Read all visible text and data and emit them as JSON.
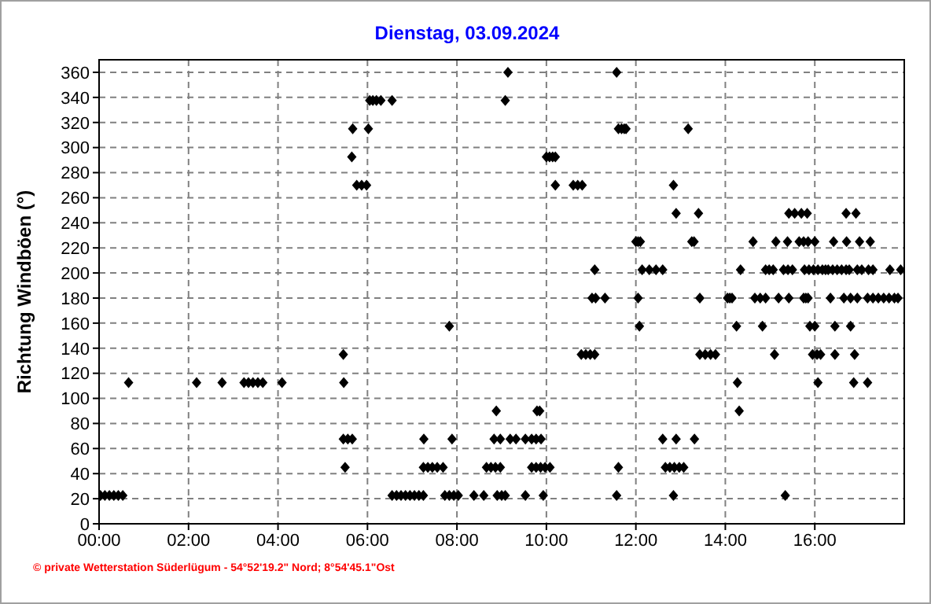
{
  "chart_data": {
    "type": "scatter",
    "title": "Dienstag, 03.09.2024",
    "ylabel": "Richtung Windböen  (°)",
    "annotations": [
      "© private Wetterstation Süderlügum - 54°52'19.2\" Nord; 8°54'45.1\"Ost"
    ],
    "x": [
      0.03,
      0.13,
      0.23,
      0.33,
      0.43,
      0.53,
      6.55,
      6.65,
      6.75,
      6.85,
      6.95,
      7.05,
      7.15,
      7.25,
      7.73,
      7.83,
      7.93,
      8.03,
      8.38,
      8.6,
      8.9,
      9.0,
      9.08,
      9.53,
      9.93,
      11.57,
      12.84,
      15.34,
      5.5,
      7.25,
      7.35,
      7.45,
      7.56,
      7.69,
      8.66,
      8.76,
      8.86,
      8.97,
      9.67,
      9.77,
      9.87,
      9.97,
      10.08,
      11.61,
      12.66,
      12.76,
      12.86,
      12.97,
      13.07,
      5.46,
      5.56,
      5.66,
      7.26,
      7.89,
      8.83,
      8.97,
      9.19,
      9.32,
      9.53,
      9.67,
      9.77,
      9.88,
      12.6,
      12.9,
      13.31,
      8.88,
      9.79,
      9.85,
      14.31,
      0.66,
      2.18,
      2.75,
      3.24,
      3.34,
      3.44,
      3.55,
      3.66,
      4.09,
      5.47,
      14.27,
      16.07,
      16.87,
      17.18,
      5.46,
      10.78,
      10.88,
      10.98,
      11.08,
      13.43,
      13.55,
      13.67,
      13.78,
      15.1,
      15.95,
      16.05,
      16.13,
      16.45,
      16.89,
      7.83,
      12.08,
      14.25,
      14.83,
      15.89,
      16.0,
      16.45,
      16.8,
      11.02,
      11.1,
      11.31,
      12.05,
      13.43,
      14.05,
      14.1,
      14.15,
      14.66,
      14.78,
      14.9,
      15.19,
      15.42,
      15.75,
      15.8,
      15.85,
      16.35,
      16.65,
      16.8,
      16.95,
      17.18,
      17.3,
      17.42,
      17.54,
      17.66,
      17.78,
      17.86,
      11.08,
      12.14,
      12.3,
      12.45,
      12.6,
      14.34,
      14.9,
      14.98,
      15.07,
      15.3,
      15.4,
      15.5,
      15.77,
      15.87,
      15.97,
      16.07,
      16.17,
      16.24,
      16.3,
      16.4,
      16.5,
      16.6,
      16.7,
      16.77,
      16.95,
      17.05,
      17.2,
      17.3,
      17.68,
      17.92,
      12.0,
      12.05,
      12.1,
      13.25,
      13.3,
      14.62,
      15.13,
      15.39,
      15.65,
      15.75,
      15.85,
      16.0,
      16.42,
      16.71,
      17.0,
      17.24,
      12.9,
      13.4,
      15.42,
      15.55,
      15.7,
      15.83,
      16.7,
      16.92,
      5.76,
      5.87,
      5.98,
      10.2,
      10.6,
      10.7,
      10.8,
      12.84,
      5.65,
      10.0,
      10.07,
      10.14,
      10.2,
      5.67,
      6.02,
      11.61,
      11.68,
      11.74,
      11.78,
      13.17,
      6.05,
      6.12,
      6.2,
      6.3,
      6.55,
      9.08,
      9.14,
      11.57
    ],
    "values": [
      22.5,
      22.5,
      22.5,
      22.5,
      22.5,
      22.5,
      22.5,
      22.5,
      22.5,
      22.5,
      22.5,
      22.5,
      22.5,
      22.5,
      22.5,
      22.5,
      22.5,
      22.5,
      22.5,
      22.5,
      22.5,
      22.5,
      22.5,
      22.5,
      22.5,
      22.5,
      22.5,
      22.5,
      45,
      45,
      45,
      45,
      45,
      45,
      45,
      45,
      45,
      45,
      45,
      45,
      45,
      45,
      45,
      45,
      45,
      45,
      45,
      45,
      45,
      67.5,
      67.5,
      67.5,
      67.5,
      67.5,
      67.5,
      67.5,
      67.5,
      67.5,
      67.5,
      67.5,
      67.5,
      67.5,
      67.5,
      67.5,
      67.5,
      90,
      90,
      90,
      90,
      112.5,
      112.5,
      112.5,
      112.5,
      112.5,
      112.5,
      112.5,
      112.5,
      112.5,
      112.5,
      112.5,
      112.5,
      112.5,
      112.5,
      135,
      135,
      135,
      135,
      135,
      135,
      135,
      135,
      135,
      135,
      135,
      135,
      135,
      135,
      135,
      157.5,
      157.5,
      157.5,
      157.5,
      157.5,
      157.5,
      157.5,
      157.5,
      180,
      180,
      180,
      180,
      180,
      180,
      180,
      180,
      180,
      180,
      180,
      180,
      180,
      180,
      180,
      180,
      180,
      180,
      180,
      180,
      180,
      180,
      180,
      180,
      180,
      180,
      180,
      202.5,
      202.5,
      202.5,
      202.5,
      202.5,
      202.5,
      202.5,
      202.5,
      202.5,
      202.5,
      202.5,
      202.5,
      202.5,
      202.5,
      202.5,
      202.5,
      202.5,
      202.5,
      202.5,
      202.5,
      202.5,
      202.5,
      202.5,
      202.5,
      202.5,
      202.5,
      202.5,
      202.5,
      202.5,
      202.5,
      225,
      225,
      225,
      225,
      225,
      225,
      225,
      225,
      225,
      225,
      225,
      225,
      225,
      225,
      225,
      225,
      247.5,
      247.5,
      247.5,
      247.5,
      247.5,
      247.5,
      247.5,
      247.5,
      270,
      270,
      270,
      270,
      270,
      270,
      270,
      270,
      292.5,
      292.5,
      292.5,
      292.5,
      292.5,
      315,
      315,
      315,
      315,
      315,
      315,
      315,
      337.5,
      337.5,
      337.5,
      337.5,
      337.5,
      337.5,
      360,
      360
    ],
    "color": "#000000",
    "marker": "diamond",
    "grid": true,
    "xlim": [
      0,
      18
    ],
    "xticks": [
      {
        "value": 0,
        "label": "00:00"
      },
      {
        "value": 2,
        "label": "02:00"
      },
      {
        "value": 4,
        "label": "04:00"
      },
      {
        "value": 6,
        "label": "06:00"
      },
      {
        "value": 8,
        "label": "08:00"
      },
      {
        "value": 10,
        "label": "10:00"
      },
      {
        "value": 12,
        "label": "12:00"
      },
      {
        "value": 14,
        "label": "14:00"
      },
      {
        "value": 16,
        "label": "16:00"
      }
    ],
    "ylim": [
      0,
      370
    ],
    "yticks": [
      0,
      20,
      40,
      60,
      80,
      100,
      120,
      140,
      160,
      180,
      200,
      220,
      240,
      260,
      280,
      300,
      320,
      340,
      360
    ]
  }
}
